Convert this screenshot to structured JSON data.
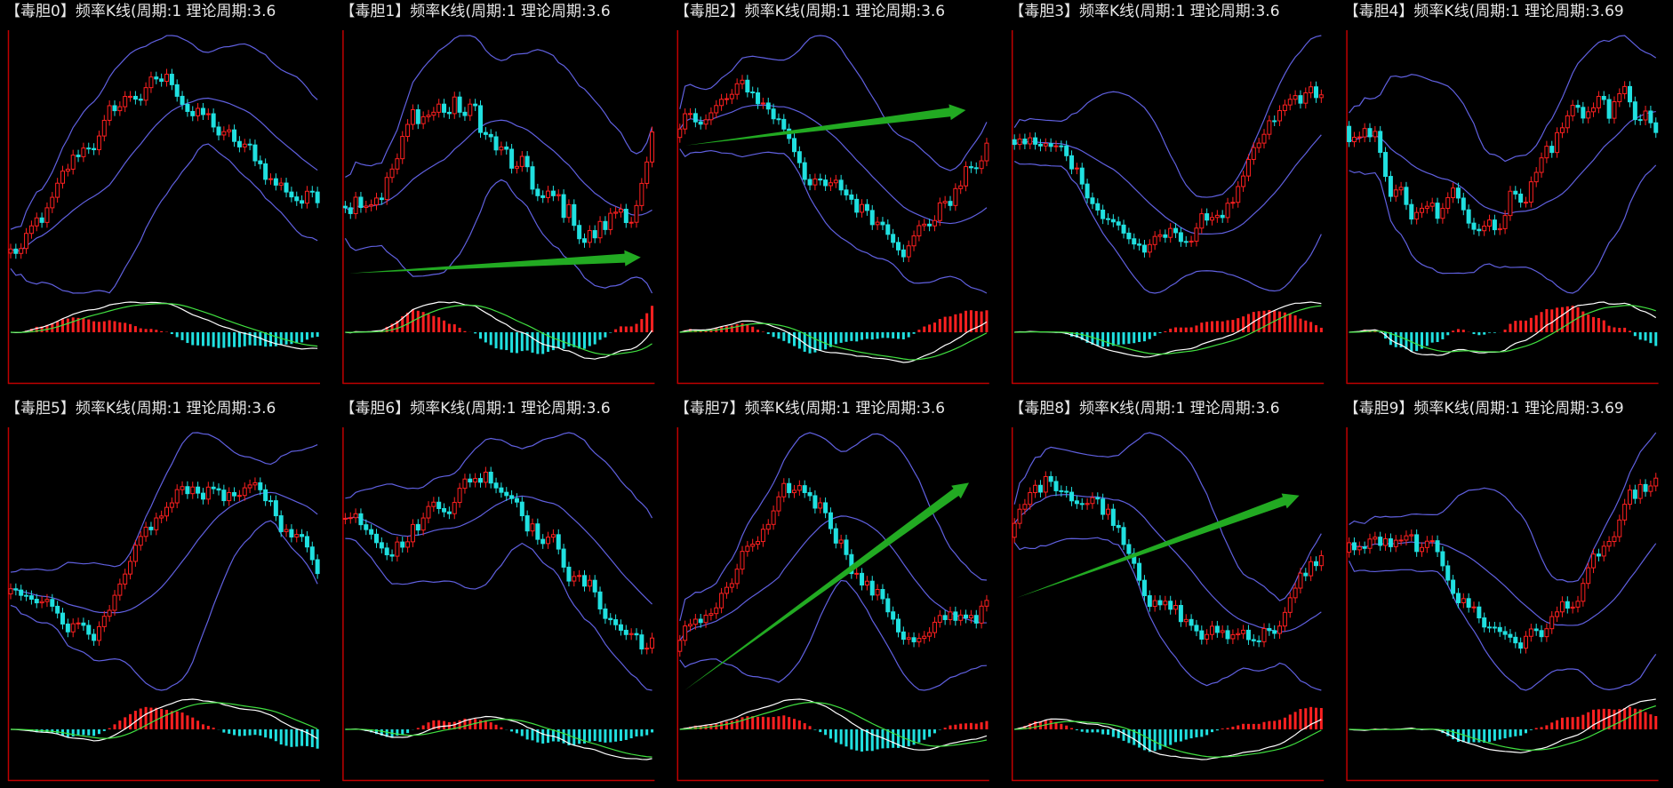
{
  "panels": [
    {
      "title": "【毒胆0】频率K线(周期:1 理论周期:3.6"
    },
    {
      "title": "【毒胆1】频率K线(周期:1 理论周期:3.6"
    },
    {
      "title": "【毒胆2】频率K线(周期:1 理论周期:3.6"
    },
    {
      "title": "【毒胆3】频率K线(周期:1 理论周期:3.6"
    },
    {
      "title": "【毒胆4】频率K线(周期:1 理论周期:3.69"
    },
    {
      "title": "【毒胆5】频率K线(周期:1 理论周期:3.6"
    },
    {
      "title": "【毒胆6】频率K线(周期:1 理论周期:3.6"
    },
    {
      "title": "【毒胆7】频率K线(周期:1 理论周期:3.6"
    },
    {
      "title": "【毒胆8】频率K线(周期:1 理论周期:3.6"
    },
    {
      "title": "【毒胆9】频率K线(周期:1 理论周期:3.69"
    }
  ]
}
